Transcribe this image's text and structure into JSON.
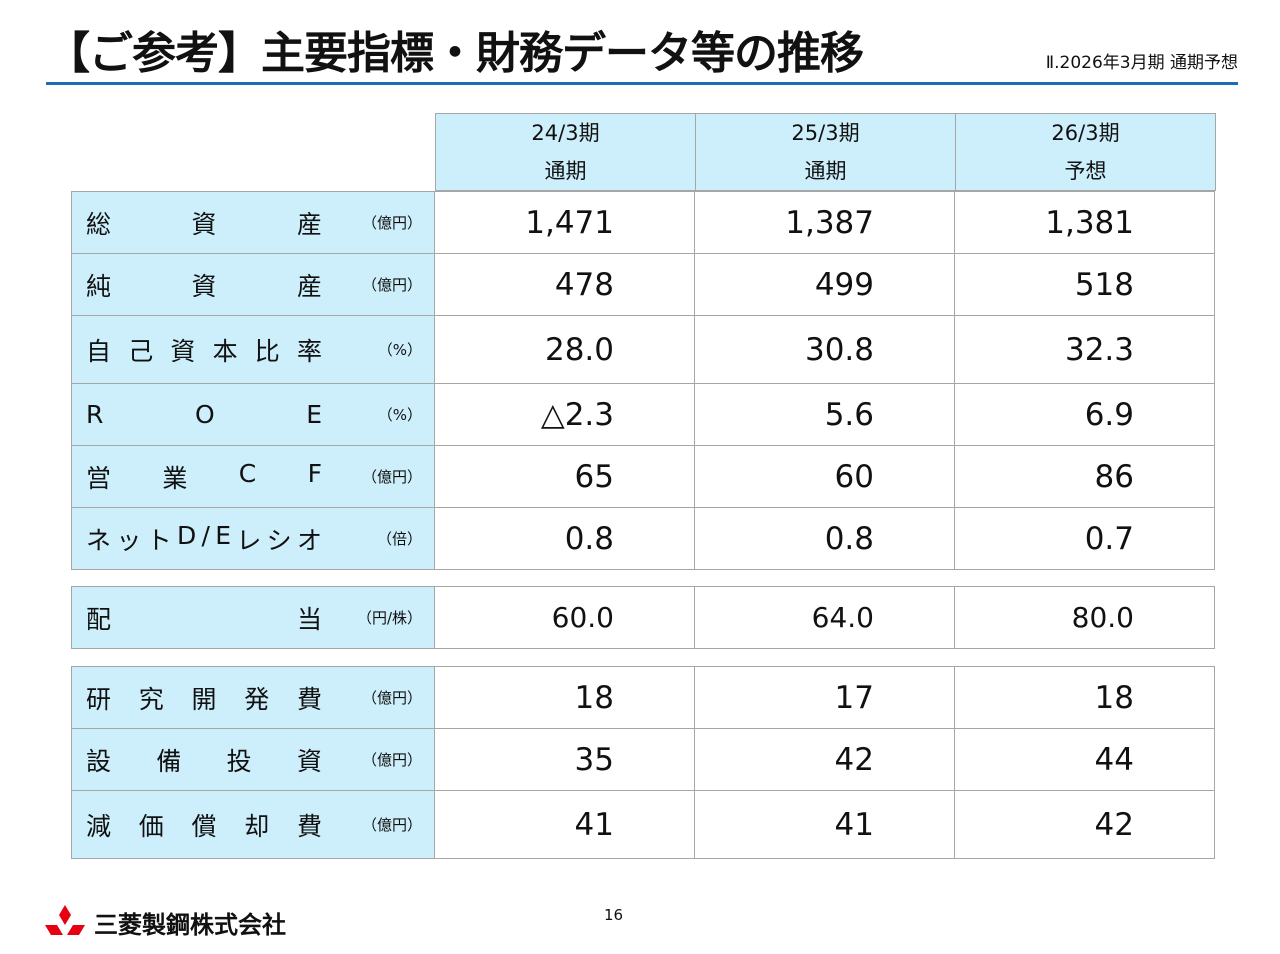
{
  "header": {
    "title": "【ご参考】主要指標・財務データ等の推移",
    "subtitle": "Ⅱ.2026年3月期 通期予想"
  },
  "columns": [
    {
      "period": "24/3期",
      "type": "通期"
    },
    {
      "period": "25/3期",
      "type": "通期"
    },
    {
      "period": "26/3期",
      "type": "予想"
    }
  ],
  "rows": [
    {
      "label_chars": [
        "総",
        "資",
        "産"
      ],
      "unit": "（億円）",
      "values": [
        "1,471",
        "1,387",
        "1,381"
      ]
    },
    {
      "label_chars": [
        "純",
        "資",
        "産"
      ],
      "unit": "（億円）",
      "values": [
        "478",
        "499",
        "518"
      ]
    },
    {
      "label_chars": [
        "自",
        "己",
        "資",
        "本",
        "比",
        "率"
      ],
      "unit": "（%）",
      "values": [
        "28.0",
        "30.8",
        "32.3"
      ]
    },
    {
      "label_chars": [
        "R",
        "O",
        "E"
      ],
      "unit": "（%）",
      "values": [
        "△2.3",
        "5.6",
        "6.9"
      ]
    },
    {
      "label_chars": [
        "営",
        "業",
        "C",
        "F"
      ],
      "unit": "（億円）",
      "values": [
        "65",
        "60",
        "86"
      ]
    },
    {
      "label_chars": [
        "ネ",
        "ッ",
        "ト",
        "D",
        "/",
        "E",
        "レ",
        "シ",
        "オ"
      ],
      "unit": "（倍）",
      "values": [
        "0.8",
        "0.8",
        "0.7"
      ]
    },
    {
      "label_chars": [
        "配",
        "当"
      ],
      "unit": "（円/株）",
      "values": [
        "60.0",
        "64.0",
        "80.0"
      ]
    },
    {
      "label_chars": [
        "研",
        "究",
        "開",
        "発",
        "費"
      ],
      "unit": "（億円）",
      "values": [
        "18",
        "17",
        "18"
      ]
    },
    {
      "label_chars": [
        "設",
        "備",
        "投",
        "資"
      ],
      "unit": "（億円）",
      "values": [
        "35",
        "42",
        "44"
      ]
    },
    {
      "label_chars": [
        "減",
        "価",
        "償",
        "却",
        "費"
      ],
      "unit": "（億円）",
      "values": [
        "41",
        "41",
        "42"
      ]
    }
  ],
  "footer": {
    "page_number": "16",
    "company": "三菱製鋼株式会社",
    "logo_icon": "three-diamonds-icon",
    "logo_color": "#e60012"
  },
  "colors": {
    "accent_rule": "#1f6bb5",
    "header_fill": "#cdeefb",
    "border": "#a6a6a6"
  }
}
